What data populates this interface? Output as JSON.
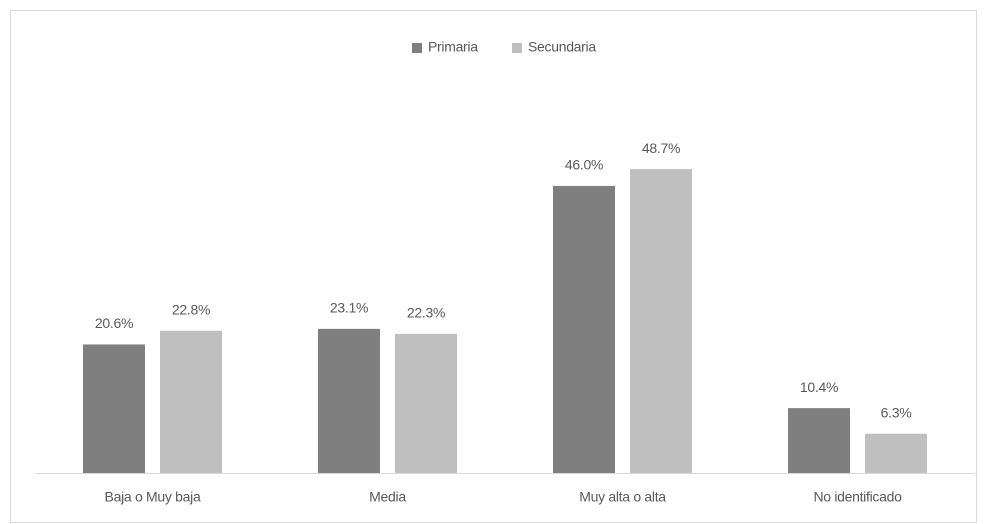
{
  "chart_data": {
    "type": "bar",
    "categories": [
      "Baja o Muy baja",
      "Media",
      "Muy alta o alta",
      "No identificado"
    ],
    "series": [
      {
        "name": "Primaria",
        "color": "#7f7f7f",
        "values": [
          20.6,
          23.1,
          46.0,
          10.4
        ],
        "value_labels": [
          "20.6%",
          "23.1%",
          "46.0%",
          "10.4%"
        ]
      },
      {
        "name": "Secundaria",
        "color": "#bfbfbf",
        "values": [
          22.8,
          22.3,
          48.7,
          6.3
        ],
        "value_labels": [
          "22.8%",
          "22.3%",
          "48.7%",
          "6.3%"
        ]
      }
    ],
    "legend": "top"
  }
}
